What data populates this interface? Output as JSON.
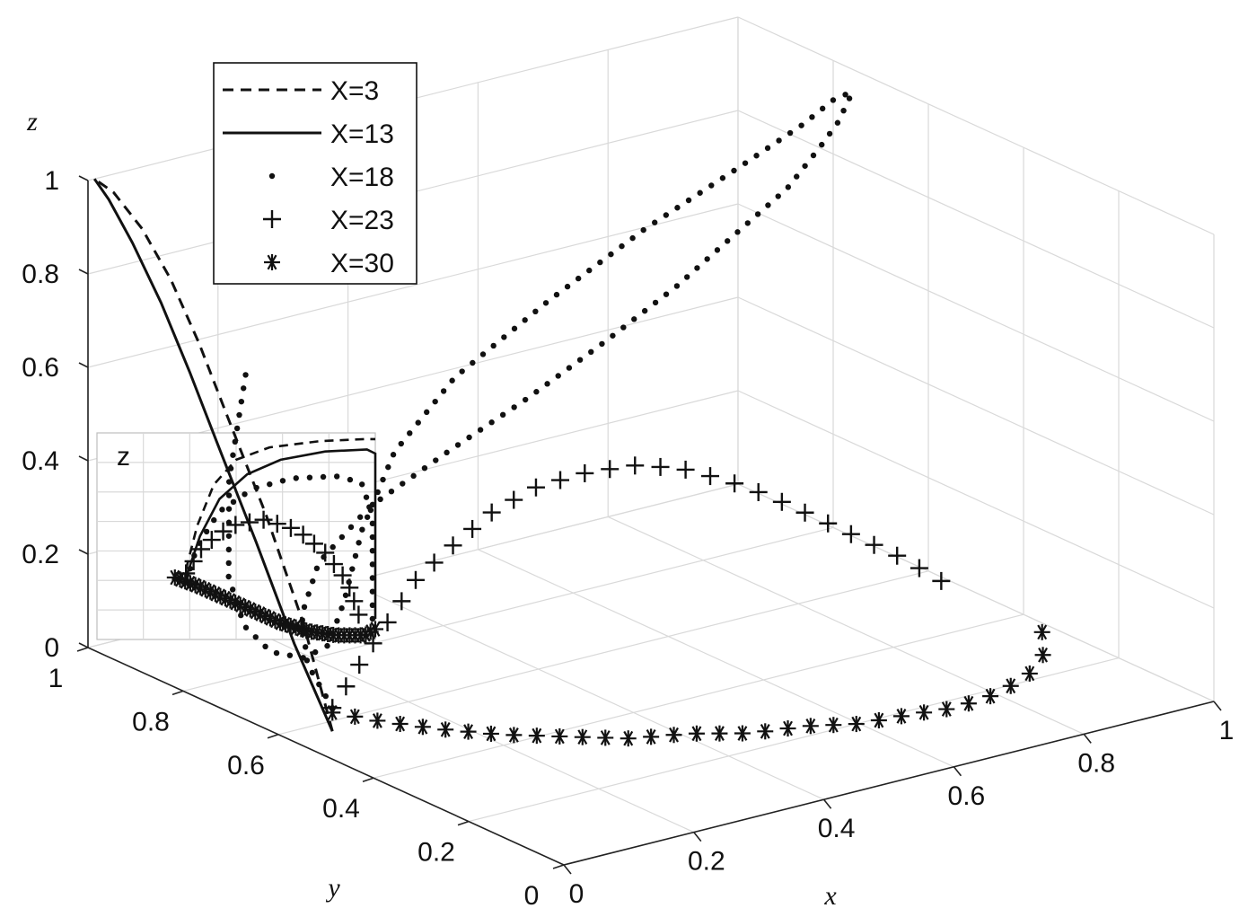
{
  "chart_data": {
    "type": "line",
    "projection": "3d",
    "xlabel": "x",
    "ylabel": "y",
    "zlabel": "z",
    "xlim": [
      0,
      1
    ],
    "ylim": [
      0,
      1
    ],
    "zlim": [
      0,
      1
    ],
    "grid": true,
    "legend_position": "top-left",
    "ticks": {
      "x": [
        "0",
        "0.2",
        "0.4",
        "0.6",
        "0.8",
        "1"
      ],
      "y": [
        "0",
        "0.2",
        "0.4",
        "0.6",
        "0.8",
        "1"
      ],
      "z": [
        "0",
        "0.2",
        "0.4",
        "0.6",
        "0.8",
        "1"
      ]
    },
    "inset": {
      "label": "z"
    },
    "series": [
      {
        "name": "X=3",
        "style": "dashed",
        "x": [
          0.01,
          0.01,
          0.01,
          0.01,
          0.01,
          0.01,
          0.01,
          0.01,
          0.01
        ],
        "y": [
          0.5,
          0.56,
          0.64,
          0.72,
          0.78,
          0.84,
          0.9,
          0.96,
          1.0
        ],
        "z": [
          0.05,
          0.25,
          0.45,
          0.62,
          0.75,
          0.86,
          0.94,
          0.99,
          1.0
        ]
      },
      {
        "name": "X=13",
        "style": "solid",
        "x": [
          0.01,
          0.01,
          0.01,
          0.01,
          0.01,
          0.01,
          0.01,
          0.01,
          0.01
        ],
        "y": [
          0.5,
          0.58,
          0.66,
          0.74,
          0.8,
          0.86,
          0.92,
          0.97,
          1.0
        ],
        "z": [
          0.05,
          0.2,
          0.38,
          0.55,
          0.68,
          0.8,
          0.9,
          0.97,
          1.0
        ]
      },
      {
        "name": "X=18",
        "style": "dot",
        "x": [
          0.01,
          0.03,
          0.08,
          0.15,
          0.25,
          0.38,
          0.5,
          0.62,
          0.73,
          0.82,
          0.9,
          0.95,
          0.97,
          0.98,
          0.97,
          0.93,
          0.85,
          0.72,
          0.55,
          0.38,
          0.22,
          0.12,
          0.07,
          0.05,
          0.04,
          0.04,
          0.04,
          0.05,
          0.07,
          0.1,
          0.14
        ],
        "y": [
          0.5,
          0.58,
          0.66,
          0.72,
          0.75,
          0.76,
          0.76,
          0.76,
          0.76,
          0.76,
          0.76,
          0.76,
          0.75,
          0.74,
          0.72,
          0.7,
          0.66,
          0.62,
          0.58,
          0.55,
          0.53,
          0.52,
          0.52,
          0.53,
          0.55,
          0.6,
          0.67,
          0.74,
          0.8,
          0.84,
          0.86
        ],
        "z": [
          0.1,
          0.15,
          0.2,
          0.26,
          0.33,
          0.4,
          0.47,
          0.55,
          0.63,
          0.71,
          0.78,
          0.85,
          0.9,
          0.95,
          0.98,
          0.99,
          0.98,
          0.95,
          0.9,
          0.82,
          0.72,
          0.6,
          0.45,
          0.3,
          0.2,
          0.15,
          0.13,
          0.15,
          0.22,
          0.4,
          0.6
        ]
      },
      {
        "name": "X=23",
        "style": "plus",
        "x": [
          0.01,
          0.02,
          0.04,
          0.07,
          0.11,
          0.16,
          0.22,
          0.29,
          0.36,
          0.43,
          0.5,
          0.57,
          0.64,
          0.71,
          0.78,
          0.85,
          0.91
        ],
        "y": [
          0.5,
          0.48,
          0.47,
          0.46,
          0.46,
          0.45,
          0.45,
          0.45,
          0.44,
          0.44,
          0.44,
          0.44,
          0.44,
          0.44,
          0.44,
          0.45,
          0.45
        ],
        "z": [
          0.1,
          0.16,
          0.22,
          0.29,
          0.36,
          0.42,
          0.47,
          0.5,
          0.51,
          0.5,
          0.47,
          0.42,
          0.36,
          0.29,
          0.22,
          0.15,
          0.08
        ]
      },
      {
        "name": "X=30",
        "style": "asterisk",
        "x": [
          0.01,
          0.05,
          0.1,
          0.16,
          0.23,
          0.3,
          0.37,
          0.44,
          0.51,
          0.58,
          0.65,
          0.72,
          0.79,
          0.86,
          0.92,
          0.97
        ],
        "y": [
          0.5,
          0.45,
          0.4,
          0.35,
          0.31,
          0.27,
          0.24,
          0.21,
          0.19,
          0.17,
          0.16,
          0.16,
          0.17,
          0.2,
          0.25,
          0.32
        ],
        "z": [
          0.09,
          0.08,
          0.07,
          0.06,
          0.05,
          0.04,
          0.04,
          0.03,
          0.03,
          0.02,
          0.02,
          0.01,
          0.01,
          0.01,
          0.01,
          0.01
        ]
      }
    ]
  }
}
